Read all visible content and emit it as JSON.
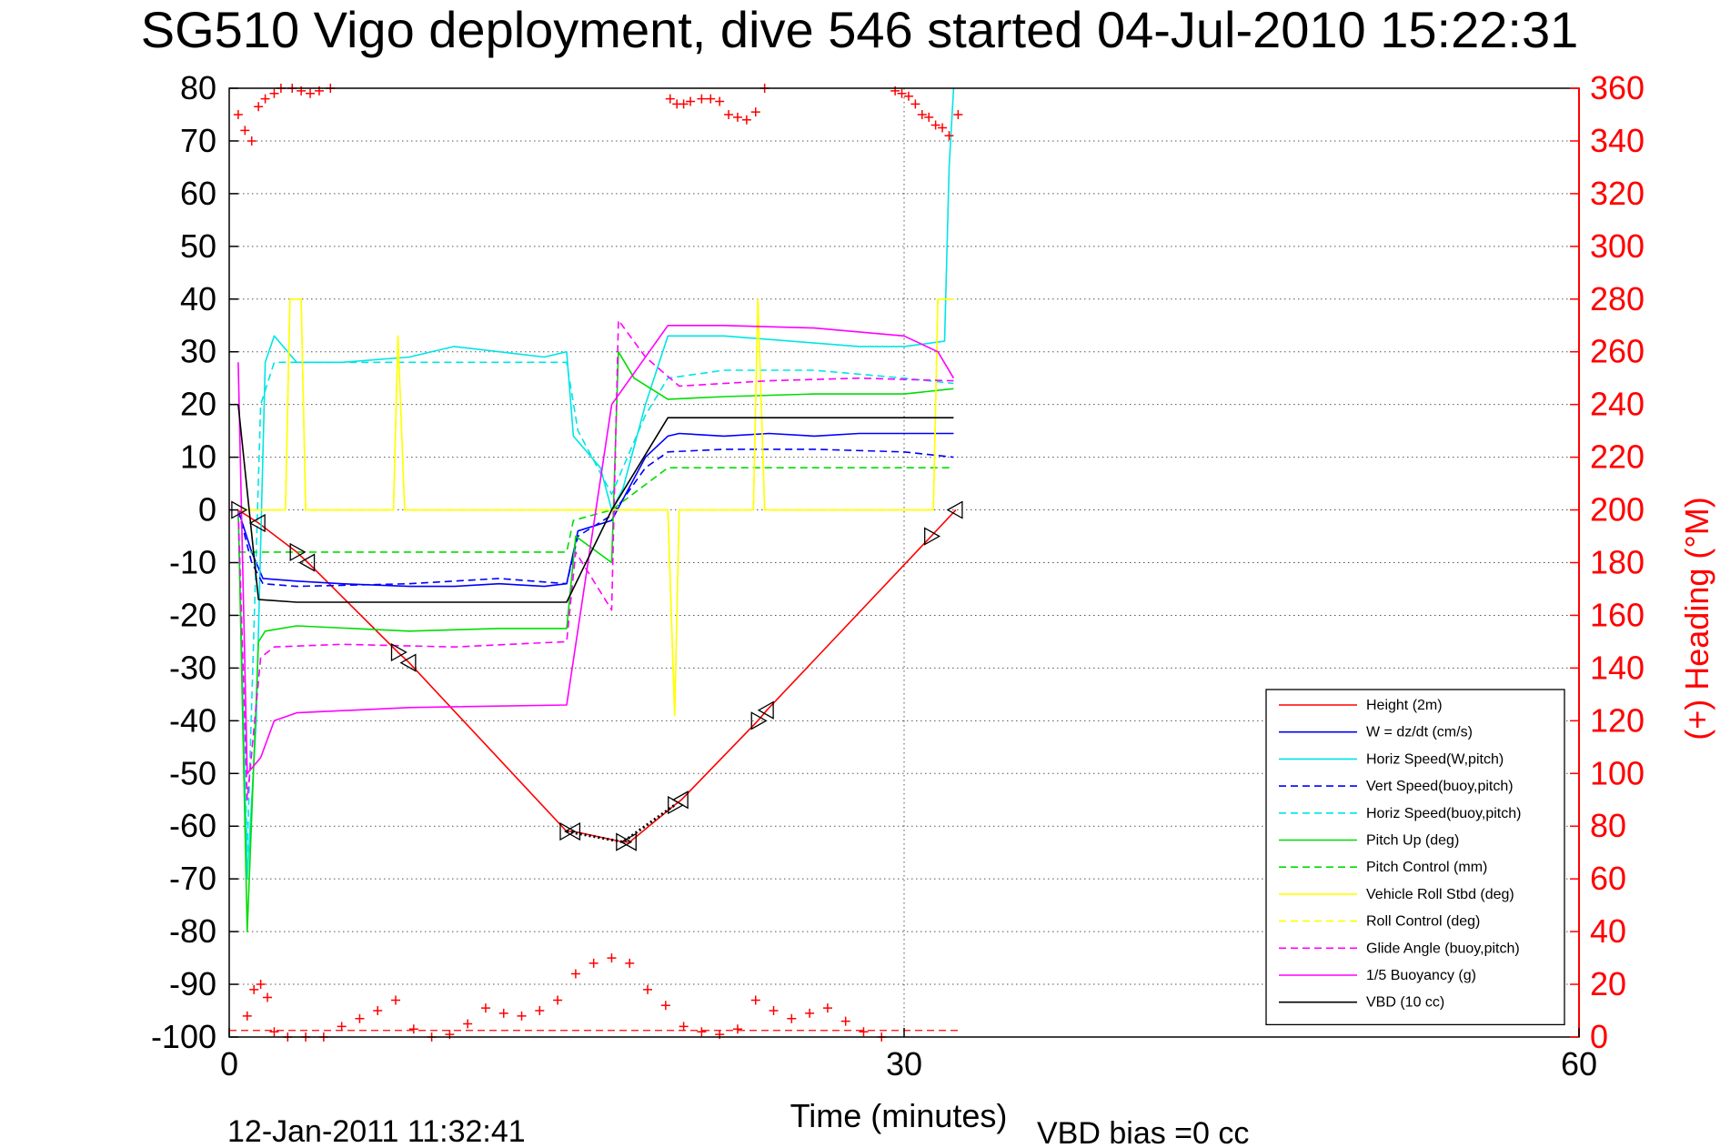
{
  "chart_data": {
    "type": "line",
    "title": "SG510 Vigo deployment, dive 546 started 04-Jul-2010 15:22:31",
    "xlabel": "Time (minutes)",
    "ylabel_right": "(+) Heading (°M)",
    "xlim": [
      0,
      60
    ],
    "ylim": [
      -100,
      80
    ],
    "ylim_right": [
      0,
      360
    ],
    "xticks": [
      "0",
      "30",
      "60"
    ],
    "yticks": [
      "80",
      "70",
      "60",
      "50",
      "40",
      "30",
      "20",
      "10",
      "0",
      "-10",
      "-20",
      "-30",
      "-40",
      "-50",
      "-60",
      "-70",
      "-80",
      "-90",
      "-100"
    ],
    "yticks_right": [
      "360",
      "340",
      "320",
      "300",
      "280",
      "260",
      "240",
      "220",
      "200",
      "180",
      "160",
      "140",
      "120",
      "100",
      "80",
      "60",
      "40",
      "20",
      "0"
    ],
    "grid": "dotted",
    "legend_position": "bottom-right",
    "footer_date": "12-Jan-2011 11:32:41",
    "footer_note": "VBD bias =0 cc",
    "colors": {
      "red": "#ff0000",
      "blue": "#0000ff",
      "cyan": "#00e5e5",
      "green": "#00dd00",
      "yellow": "#ffff00",
      "magenta": "#ff00ff",
      "black": "#000000"
    },
    "series": [
      {
        "name": "Height (2m)",
        "color": "#ff0000",
        "style": "solid",
        "x": [
          0.4,
          1.3,
          3.0,
          3.5,
          7.5,
          8.0,
          15.0,
          15.3,
          17.5,
          17.8,
          19.8,
          20.1,
          23.5,
          23.9,
          31.2,
          32.3
        ],
        "y": [
          0,
          -2.5,
          -8,
          -10,
          -27,
          -29,
          -61,
          -61,
          -63,
          -63,
          -56,
          -55,
          -40,
          -38,
          -5,
          0
        ]
      },
      {
        "name": "W = dz/dt (cm/s)",
        "color": "#0000ff",
        "style": "solid",
        "x": [
          0.4,
          1.0,
          1.5,
          3.0,
          5,
          8,
          10,
          12,
          14,
          15.0,
          15.5,
          17,
          18.5,
          19.5,
          20,
          22,
          24,
          26,
          28,
          30,
          32.2
        ],
        "y": [
          0,
          -8,
          -13,
          -13.5,
          -14,
          -14.5,
          -14.5,
          -14,
          -14.5,
          -14,
          -4,
          -2,
          10,
          14,
          14.5,
          14,
          14.5,
          14,
          14.5,
          14.5,
          14.5
        ]
      },
      {
        "name": "Horiz Speed(W,pitch)",
        "color": "#00e5e5",
        "style": "solid",
        "x": [
          0.4,
          0.8,
          1.2,
          1.6,
          2.0,
          3,
          5,
          8,
          10,
          12,
          14,
          15.0,
          15.3,
          16.5,
          17,
          17.5,
          18.5,
          19.5,
          22,
          25,
          28,
          30,
          31.8,
          32.0,
          32.2
        ],
        "y": [
          0,
          -70,
          -40,
          28,
          33,
          28,
          28,
          29,
          31,
          30,
          29,
          30,
          14,
          8,
          0,
          4,
          20,
          33,
          33,
          32,
          31,
          31,
          32,
          65,
          80
        ]
      },
      {
        "name": "Vert Speed(buoy,pitch)",
        "color": "#0000ff",
        "style": "dashed",
        "x": [
          0.4,
          1.0,
          1.5,
          3,
          8,
          12,
          15.0,
          15.5,
          17,
          18.5,
          19.5,
          22,
          26,
          30,
          32.2
        ],
        "y": [
          0,
          -10,
          -14,
          -14.5,
          -14,
          -13,
          -14,
          -5,
          -1,
          8,
          11,
          11.5,
          11.5,
          11,
          10
        ]
      },
      {
        "name": "Horiz Speed(buoy,pitch)",
        "color": "#00e5e5",
        "style": "dashed",
        "x": [
          0.4,
          0.8,
          1.4,
          2.0,
          5,
          10,
          15.0,
          15.5,
          17,
          18.5,
          19.5,
          22,
          26,
          30,
          32.2
        ],
        "y": [
          0,
          -65,
          20,
          28,
          28,
          28,
          28,
          15,
          3,
          18,
          25,
          26.5,
          26.5,
          25,
          24
        ]
      },
      {
        "name": "Pitch Up (deg)",
        "color": "#00dd00",
        "style": "solid",
        "x": [
          0.4,
          0.8,
          1.3,
          1.6,
          3,
          8,
          12,
          15.0,
          15.4,
          17,
          17.3,
          18,
          19.5,
          22,
          26,
          30,
          32.2
        ],
        "y": [
          0,
          -80,
          -25,
          -23,
          -22,
          -23,
          -22.5,
          -22.5,
          -5,
          -10,
          30,
          25,
          21,
          21.5,
          22,
          22,
          23
        ]
      },
      {
        "name": "Pitch Control (mm)",
        "color": "#00dd00",
        "style": "dashed",
        "x": [
          0.4,
          1.5,
          15.0,
          15.3,
          17,
          19.5,
          32.2
        ],
        "y": [
          -8,
          -8,
          -8,
          -2,
          0,
          8,
          8
        ]
      },
      {
        "name": "Vehicle Roll Stbd (deg)",
        "color": "#ffff00",
        "style": "solid",
        "x": [
          0.4,
          2.5,
          2.7,
          3.2,
          3.4,
          7.3,
          7.5,
          7.8,
          15.0,
          17.2,
          19.5,
          19.8,
          20.0,
          23.3,
          23.5,
          23.8,
          31.3,
          31.5,
          32.2
        ],
        "y": [
          0,
          0,
          40,
          40,
          0,
          0,
          33,
          0,
          0,
          0,
          0,
          -39,
          0,
          0,
          40,
          0,
          0,
          40,
          40
        ]
      },
      {
        "name": "Roll Control (deg)",
        "color": "#ffff00",
        "style": "dashed",
        "x": [
          0.4,
          2.5,
          2.7,
          3.2,
          3.4,
          7.3,
          7.5,
          7.8,
          15.0,
          17.2,
          19.5,
          19.8,
          20.0,
          23.3,
          23.5,
          23.8,
          31.3,
          31.5,
          32.2
        ],
        "y": [
          0,
          0,
          40,
          40,
          0,
          0,
          33,
          0,
          0,
          0,
          0,
          -39,
          0,
          0,
          40,
          0,
          0,
          40,
          40
        ]
      },
      {
        "name": "Glide Angle (buoy,pitch)",
        "color": "#ff00ff",
        "style": "dashed",
        "x": [
          0.4,
          0.8,
          1.4,
          2.0,
          5,
          10,
          15.0,
          15.4,
          17,
          17.3,
          18.5,
          20,
          24,
          28,
          32.2
        ],
        "y": [
          0,
          -55,
          -28,
          -26,
          -25.5,
          -26,
          -25,
          -8,
          -19,
          36,
          29,
          23.5,
          24.5,
          25,
          24.5
        ]
      },
      {
        "name": "1/5 Buoyancy (g)",
        "color": "#ff00ff",
        "style": "solid",
        "x": [
          0.4,
          0.8,
          1.4,
          2.0,
          3,
          8,
          15.0,
          17,
          19.5,
          22,
          26,
          30,
          31.5,
          32.2
        ],
        "y": [
          28,
          -50,
          -47,
          -40,
          -38.5,
          -37.5,
          -37,
          20,
          35,
          35,
          34.5,
          33,
          30,
          25
        ]
      },
      {
        "name": "VBD (10 cc)",
        "color": "#000000",
        "style": "solid",
        "x": [
          0.4,
          1.3,
          3,
          15.0,
          17,
          19.5,
          32.2
        ],
        "y": [
          20,
          -17,
          -17.5,
          -17.5,
          0,
          17.5,
          17.5
        ]
      }
    ],
    "heading_points": {
      "name": "(+) Heading (°M)",
      "color": "#ff0000",
      "x": [
        0.4,
        0.7,
        1.0,
        1.3,
        1.6,
        2.0,
        2.3,
        2.8,
        3.2,
        3.6,
        4.0,
        4.5,
        19.6,
        19.9,
        20.2,
        20.5,
        21.0,
        21.4,
        21.8,
        22.2,
        22.6,
        23.0,
        23.4,
        23.8,
        29.6,
        29.9,
        30.2,
        30.5,
        30.8,
        31.1,
        31.4,
        31.7,
        32.0,
        32.4
      ],
      "y": [
        350,
        344,
        340,
        353,
        356,
        358,
        360,
        360,
        359,
        358,
        359,
        360,
        356,
        354,
        354,
        355,
        356,
        356,
        355,
        350,
        349,
        348,
        351,
        360,
        359,
        358,
        357,
        354,
        350,
        349,
        346,
        345,
        342,
        350
      ]
    },
    "heading_points_low": {
      "color": "#ff0000",
      "x": [
        0.8,
        1.1,
        1.4,
        1.7,
        2.0,
        2.6,
        3.4,
        4.2,
        5.0,
        5.8,
        6.6,
        7.4,
        8.2,
        9.0,
        9.8,
        10.6,
        11.4,
        12.2,
        13.0,
        13.8,
        14.6,
        15.4,
        16.2,
        17.0,
        17.8,
        18.6,
        19.4,
        20.2,
        21.0,
        21.8,
        22.6,
        23.4,
        24.2,
        25.0,
        25.8,
        26.6,
        27.4,
        28.2,
        29.0
      ],
      "y": [
        8,
        18,
        20,
        15,
        2,
        0,
        0,
        0,
        4,
        7,
        10,
        14,
        3,
        0,
        1,
        5,
        11,
        9,
        8,
        10,
        14,
        24,
        28,
        30,
        28,
        18,
        12,
        4,
        2,
        1,
        3,
        14,
        10,
        7,
        9,
        11,
        6,
        2,
        0
      ]
    }
  }
}
